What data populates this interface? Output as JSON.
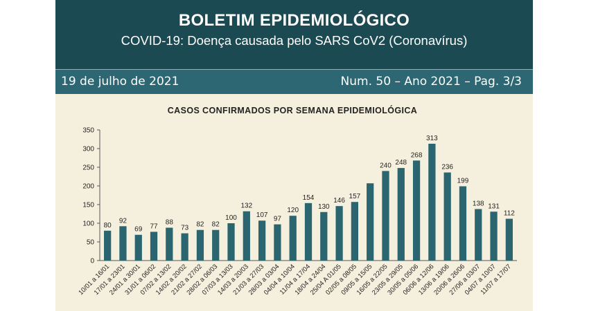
{
  "header": {
    "title": "BOLETIM EPIDEMIOLÓGICO",
    "subtitle": "COVID-19: Doença  causada pelo SARS CoV2 (Coronavírus)"
  },
  "infobar": {
    "date": "19 de julho de 2021",
    "issue": "Num. 50 – Ano 2021 – Pag. 3/3"
  },
  "colors": {
    "banner": "#1c4a52",
    "infobar": "#2c6773",
    "chart_background": "#f5f0de",
    "bar": "#2a6570"
  },
  "chart_data": {
    "type": "bar",
    "title": "CASOS CONFIRMADOS POR SEMANA EPIDEMIOLÓGICA",
    "xlabel": "",
    "ylabel": "",
    "ylim": [
      0,
      350
    ],
    "yticks": [
      0,
      50,
      100,
      150,
      200,
      250,
      300,
      350
    ],
    "grid": false,
    "legend": "none",
    "categories": [
      "10/01 a 16/01",
      "17/01 a 23/01",
      "24/01 a 30/01",
      "31/01 a 06/02",
      "07/02 a 13/02",
      "14/02 a 20/02",
      "21/02 a 27/02",
      "28/02 a 06/03",
      "07/03 a 13/03",
      "14/03 a 20/03",
      "21/03 a 27/03",
      "28/03 a 03/04",
      "04/04 a 10/04",
      "11/04 a 17/04",
      "18/04 a 24/04",
      "25/04 A 01/05",
      "02/05 a 08/05",
      "09/05 a 15/05",
      "16/05 a 22/05",
      "23/05 a 29/05",
      "30/05 a 05/06",
      "06/06 a 12/06",
      "13/06 a 19/06",
      "20/06 a 26/06",
      "27/06 a 03/07",
      "04/07 a 10/07",
      "11/07 a 17/07"
    ],
    "values": [
      80,
      92,
      69,
      77,
      88,
      73,
      82,
      82,
      100,
      132,
      107,
      97,
      120,
      154,
      130,
      146,
      157,
      207,
      240,
      248,
      268,
      313,
      236,
      199,
      138,
      131,
      112
    ],
    "data_labels": [
      "80",
      "92",
      "69",
      "77",
      "88",
      "73",
      "82",
      "82",
      "100",
      "132",
      "107",
      "97",
      "120",
      "154",
      "130",
      "146",
      "157",
      "",
      "240",
      "248",
      "268",
      "313",
      "236",
      "199",
      "138",
      "131",
      "112"
    ]
  }
}
